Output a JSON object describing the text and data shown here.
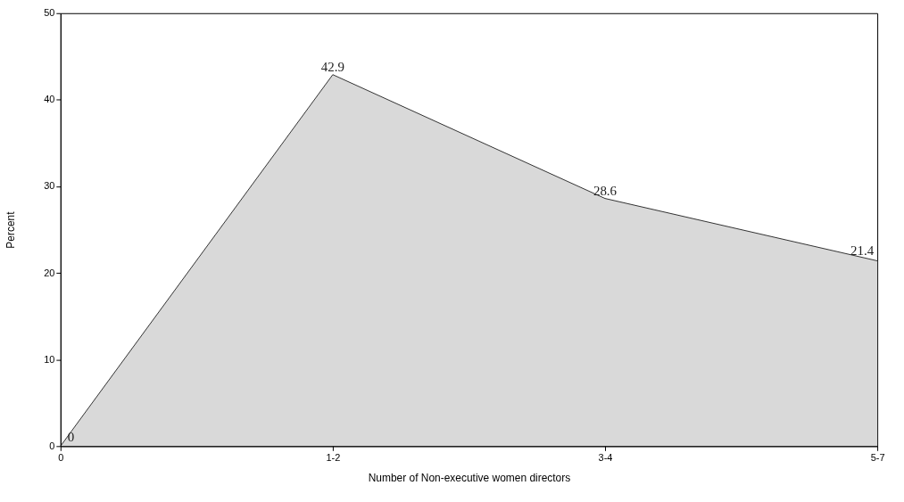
{
  "chart_data": {
    "type": "area",
    "xlabel": "Number of Non-executive women directors",
    "ylabel": "Percent",
    "categories": [
      "0",
      "1-2",
      "3-4",
      "5-7"
    ],
    "values": [
      0,
      42.9,
      28.6,
      21.4
    ],
    "color": "#d9d9d9",
    "ylim": [
      0,
      50
    ],
    "yticks": [
      0,
      10,
      20,
      30,
      40,
      50
    ],
    "data_labels": true,
    "grid": false
  }
}
